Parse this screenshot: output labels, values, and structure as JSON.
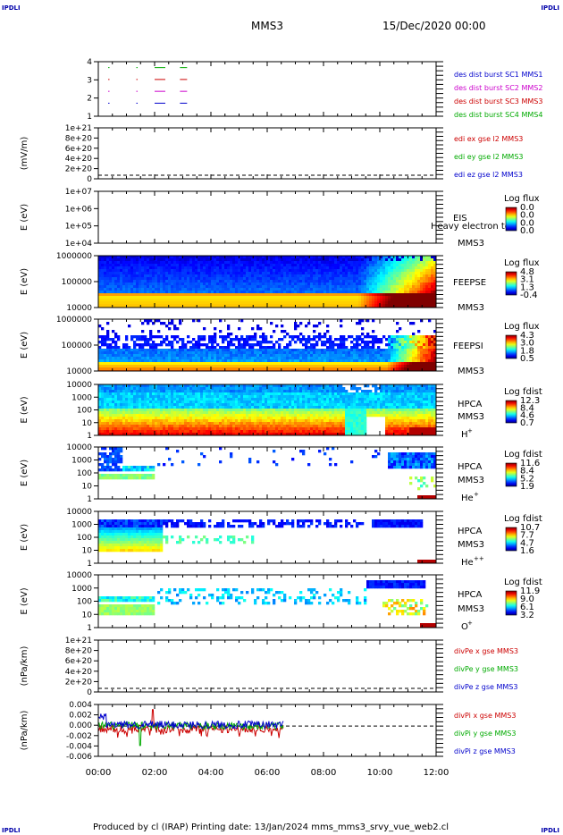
{
  "header": {
    "corner_label": "IPDLI",
    "satellite": "MMS3",
    "date": "15/Dec/2020 00:00"
  },
  "footer": {
    "text": "Produced by cl (IRAP)   Printing date: 13/Jan/2024   mms_mms3_srvy_vue_web2.cl"
  },
  "chart_data": {
    "type": "multi-panel",
    "x_axis": {
      "range": [
        "00:00",
        "12:00"
      ],
      "tick_labels": [
        "00:00",
        "02:00",
        "04:00",
        "06:00",
        "08:00",
        "10:00",
        "12:00"
      ]
    },
    "panels": [
      {
        "id": "burst",
        "type": "timeline",
        "y_ticks": [
          "4",
          "3",
          "2",
          "1"
        ],
        "legend": [
          {
            "label": "des dist burst SC1 MMS1",
            "color": "#0000cc"
          },
          {
            "label": "des dist burst SC2 MMS2",
            "color": "#cc00cc"
          },
          {
            "label": "des dist burst SC3 MMS3",
            "color": "#cc0000"
          },
          {
            "label": "des dist burst SC4 MMS4",
            "color": "#00aa00"
          }
        ],
        "segments": [
          {
            "level": 4,
            "color": "#00aa00",
            "times": [
              0.35,
              1.35,
              2.0,
              2.9
            ]
          },
          {
            "level": 3,
            "color": "#cc0000",
            "times": [
              0.35,
              1.35,
              2.0,
              2.9
            ]
          },
          {
            "level": 2,
            "color": "#cc00cc",
            "times": [
              0.35,
              1.35,
              2.0,
              2.9
            ]
          },
          {
            "level": 1,
            "color": "#0000cc",
            "times": [
              0.35,
              1.35,
              2.0,
              2.9
            ]
          }
        ]
      },
      {
        "id": "edi",
        "type": "line",
        "ylabel": "(mV/m)",
        "y_ticks": [
          "1e+21",
          "8e+20",
          "6e+20",
          "4e+20",
          "2e+20",
          "0"
        ],
        "legend": [
          {
            "label": "edi ex gse l2 MMS3",
            "color": "#cc0000"
          },
          {
            "label": "edi ey gse l2 MMS3",
            "color": "#00aa00"
          },
          {
            "label": "edi ez gse l2 MMS3",
            "color": "#0000cc"
          }
        ]
      },
      {
        "id": "eis",
        "type": "spectrogram",
        "ylabel": "E (eV)",
        "y_ticks": [
          "1e+07",
          "1e+06",
          "1e+05",
          "1e+04"
        ],
        "instrument": "EIS",
        "sat": "MMS3",
        "extra_label": "Heavy electron tof",
        "colorbar_title": "Log flux",
        "colorbar_ticks": [
          "0.0",
          "0.0",
          "0.0",
          "0.0"
        ]
      },
      {
        "id": "feepse",
        "type": "spectrogram",
        "ylabel": "E (eV)",
        "y_ticks": [
          "1000000",
          "100000",
          "10000"
        ],
        "instrument": "FEEPSE",
        "sat": "MMS3",
        "colorbar_title": "Log flux",
        "colorbar_ticks": [
          "4.8",
          "3.1",
          "1.3",
          "-0.4"
        ]
      },
      {
        "id": "feepsi",
        "type": "spectrogram",
        "ylabel": "E (eV)",
        "y_ticks": [
          "1000000",
          "100000",
          "10000"
        ],
        "instrument": "FEEPSI",
        "sat": "MMS3",
        "colorbar_title": "Log flux",
        "colorbar_ticks": [
          "4.3",
          "3.0",
          "1.8",
          "0.5"
        ]
      },
      {
        "id": "hpca-h",
        "type": "spectrogram",
        "ylabel": "E (eV)",
        "y_ticks": [
          "10000",
          "1000",
          "100",
          "10",
          "1"
        ],
        "instrument": "HPCA",
        "sat": "MMS3",
        "species": "H",
        "species_sup": "+",
        "colorbar_title": "Log fdist",
        "colorbar_ticks": [
          "12.3",
          "8.4",
          "4.6",
          "0.7"
        ]
      },
      {
        "id": "hpca-he",
        "type": "spectrogram",
        "ylabel": "E (eV)",
        "y_ticks": [
          "10000",
          "1000",
          "100",
          "10",
          "1"
        ],
        "instrument": "HPCA",
        "sat": "MMS3",
        "species": "He",
        "species_sup": "+",
        "colorbar_title": "Log fdist",
        "colorbar_ticks": [
          "11.6",
          "8.4",
          "5.2",
          "1.9"
        ]
      },
      {
        "id": "hpca-hepp",
        "type": "spectrogram",
        "ylabel": "E (eV)",
        "y_ticks": [
          "10000",
          "1000",
          "100",
          "10",
          "1"
        ],
        "instrument": "HPCA",
        "sat": "MMS3",
        "species": "He",
        "species_sup": "++",
        "colorbar_title": "Log fdist",
        "colorbar_ticks": [
          "10.7",
          "7.7",
          "4.7",
          "1.6"
        ]
      },
      {
        "id": "hpca-o",
        "type": "spectrogram",
        "ylabel": "E (eV)",
        "y_ticks": [
          "10000",
          "1000",
          "100",
          "10",
          "1"
        ],
        "instrument": "HPCA",
        "sat": "MMS3",
        "species": "O",
        "species_sup": "+",
        "colorbar_title": "Log fdist",
        "colorbar_ticks": [
          "11.9",
          "9.0",
          "6.1",
          "3.2"
        ]
      },
      {
        "id": "divpe",
        "type": "line",
        "ylabel": "(nPa/km)",
        "y_ticks": [
          "1e+21",
          "8e+20",
          "6e+20",
          "4e+20",
          "2e+20",
          "0"
        ],
        "legend": [
          {
            "label": "divPe x gse MMS3",
            "color": "#cc0000"
          },
          {
            "label": "divPe y gse MMS3",
            "color": "#00aa00"
          },
          {
            "label": "divPe z gse MMS3",
            "color": "#0000cc"
          }
        ]
      },
      {
        "id": "divpi",
        "type": "line",
        "ylabel": "(nPa/km)",
        "y_ticks": [
          "0.004",
          "0.002",
          "0.000",
          "-0.002",
          "-0.004",
          "-0.006"
        ],
        "y_range": [
          -0.007,
          0.005
        ],
        "data_end_hour": 6.6,
        "legend": [
          {
            "label": "divPi x gse MMS3",
            "color": "#cc0000"
          },
          {
            "label": "divPi y gse MMS3",
            "color": "#00aa00"
          },
          {
            "label": "divPi z gse MMS3",
            "color": "#0000cc"
          }
        ]
      }
    ]
  }
}
